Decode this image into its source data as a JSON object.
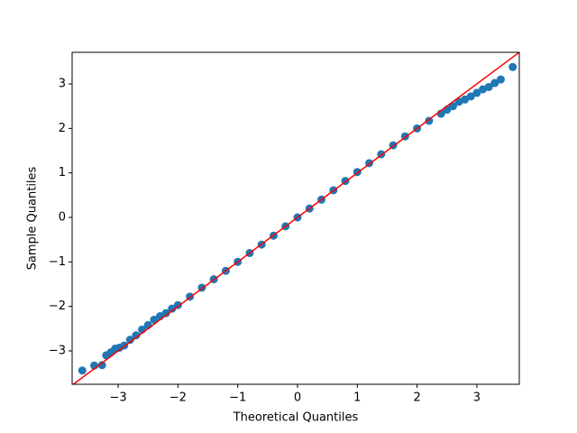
{
  "chart_data": {
    "type": "scatter",
    "xlabel": "Theoretical Quantiles",
    "ylabel": "Sample Quantiles",
    "xlim": [
      -3.77,
      3.71
    ],
    "ylim": [
      -3.75,
      3.71
    ],
    "xticks": [
      {
        "value": -3,
        "label": "−3"
      },
      {
        "value": -2,
        "label": "−2"
      },
      {
        "value": -1,
        "label": "−1"
      },
      0,
      1,
      2,
      3
    ],
    "yticks": [
      {
        "value": -3,
        "label": "−3"
      },
      {
        "value": -2,
        "label": "−2"
      },
      {
        "value": -1,
        "label": "−1"
      },
      0,
      1,
      2,
      3
    ],
    "series": [
      {
        "type": "scatter",
        "color": "#1f77b4",
        "x": [
          -3.6,
          -3.4,
          -3.27,
          -3.2,
          -3.12,
          -3.05,
          -2.98,
          -2.9,
          -2.8,
          -2.7,
          -2.6,
          -2.5,
          -2.4,
          -2.3,
          -2.2,
          -2.1,
          -2.0,
          -1.8,
          -1.6,
          -1.4,
          -1.2,
          -1.0,
          -0.8,
          -0.6,
          -0.4,
          -0.2,
          0,
          0.2,
          0.4,
          0.6,
          0.8,
          1.0,
          1.2,
          1.4,
          1.6,
          1.8,
          2.0,
          2.2,
          2.4,
          2.5,
          2.6,
          2.7,
          2.8,
          2.9,
          3.0,
          3.1,
          3.2,
          3.3,
          3.4,
          3.6
        ],
        "values": [
          -3.44,
          -3.33,
          -3.32,
          -3.1,
          -3.03,
          -2.95,
          -2.93,
          -2.88,
          -2.75,
          -2.65,
          -2.52,
          -2.42,
          -2.3,
          -2.22,
          -2.15,
          -2.05,
          -1.97,
          -1.78,
          -1.58,
          -1.39,
          -1.2,
          -1.0,
          -0.8,
          -0.61,
          -0.41,
          -0.2,
          0,
          0.2,
          0.4,
          0.61,
          0.82,
          1.02,
          1.22,
          1.42,
          1.62,
          1.82,
          2.0,
          2.17,
          2.33,
          2.42,
          2.5,
          2.6,
          2.65,
          2.72,
          2.8,
          2.88,
          2.93,
          3.02,
          3.1,
          3.38
        ]
      },
      {
        "type": "line",
        "color": "#ff0000",
        "x": [
          -3.8,
          3.8
        ],
        "values": [
          -3.8,
          3.8
        ]
      }
    ]
  }
}
